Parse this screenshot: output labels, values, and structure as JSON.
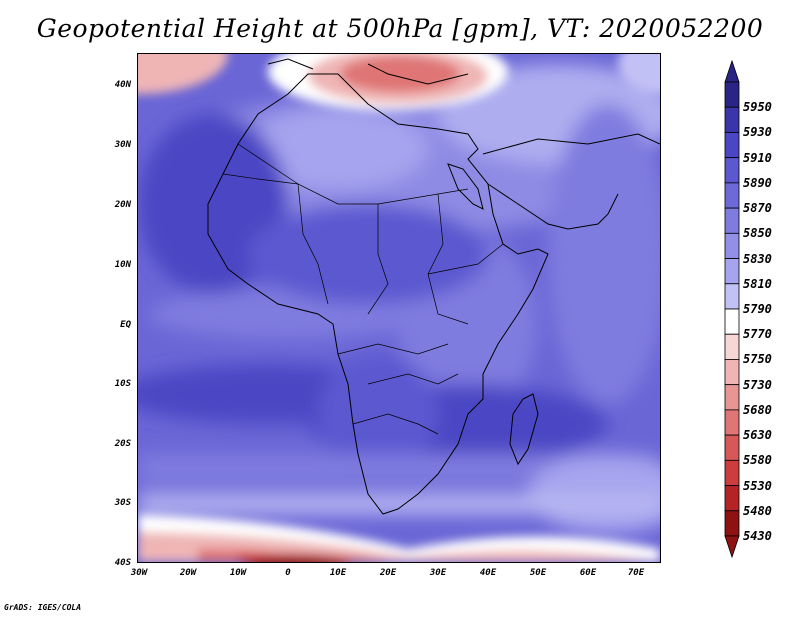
{
  "title": "Geopotential Height at 500hPa [gpm], VT: 2020052200",
  "credit": "GrADS: IGES/COLA",
  "lat_labels": [
    "40N",
    "30N",
    "20N",
    "10N",
    "EQ",
    "10S",
    "20S",
    "30S",
    "40S"
  ],
  "lon_labels": [
    "30W",
    "20W",
    "10W",
    "0",
    "10E",
    "20E",
    "30E",
    "40E",
    "50E",
    "60E",
    "70E"
  ],
  "colorbar": {
    "levels": [
      "5950",
      "5930",
      "5910",
      "5890",
      "5870",
      "5850",
      "5830",
      "5810",
      "5790",
      "5770",
      "5750",
      "5730",
      "5680",
      "5630",
      "5580",
      "5530",
      "5480",
      "5430"
    ],
    "colors": [
      "#2a2585",
      "#3a35a8",
      "#4b46c4",
      "#5c58d0",
      "#6d69d8",
      "#7f7cdf",
      "#918fe6",
      "#a6a4ee",
      "#c2c1f5",
      "#ffffff",
      "#f7d6d6",
      "#efb5b5",
      "#e79595",
      "#df7575",
      "#d65858",
      "#cc3d3d",
      "#b52424",
      "#8e1212"
    ]
  },
  "map": {
    "lon_range": [
      -30,
      75
    ],
    "lat_range": [
      -40,
      45
    ]
  }
}
